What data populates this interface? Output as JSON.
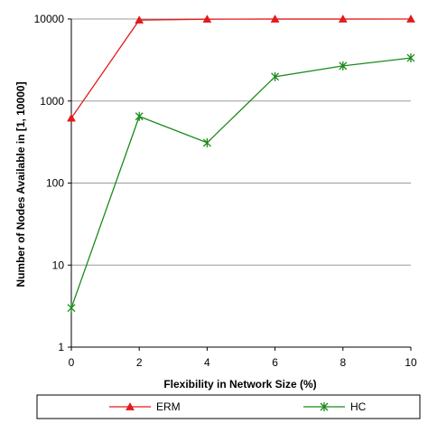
{
  "chart_data": {
    "type": "line",
    "title": "",
    "xlabel": "Flexibility in Network Size (%)",
    "ylabel": "Number of Nodes Available in [1, 10000]",
    "y_scale": "log",
    "ylim": [
      1,
      10000
    ],
    "xlim": [
      0,
      10
    ],
    "x_ticks": [
      "0",
      "2",
      "4",
      "6",
      "8",
      "10"
    ],
    "y_ticks": [
      "1",
      "10",
      "100",
      "1000",
      "10000"
    ],
    "grid": "horizontal",
    "legend_placement": "bottom",
    "x": [
      0,
      2,
      4,
      6,
      8,
      10
    ],
    "series": [
      {
        "name": "ERM",
        "color": "#e31a1c",
        "marker": "triangle",
        "values": [
          620,
          9700,
          9950,
          9980,
          9990,
          10000
        ]
      },
      {
        "name": "HC",
        "color": "#1a8a1a",
        "marker": "star",
        "values": [
          3,
          650,
          310,
          1980,
          2680,
          3350
        ]
      }
    ]
  }
}
